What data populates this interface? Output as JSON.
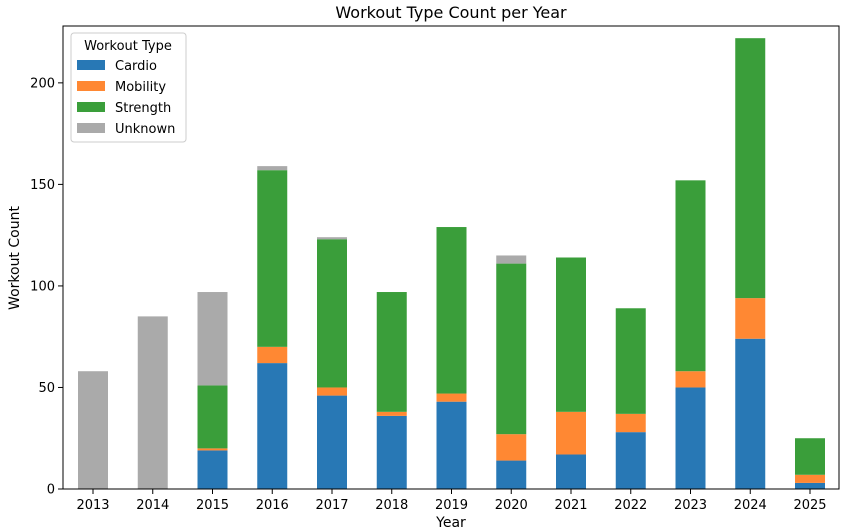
{
  "chart_data": {
    "type": "bar",
    "stacked": true,
    "title": "Workout Type Count per Year",
    "xlabel": "Year",
    "ylabel": "Workout Count",
    "ylim": [
      0,
      228
    ],
    "yticks": [
      0,
      50,
      100,
      150,
      200
    ],
    "categories": [
      "2013",
      "2014",
      "2015",
      "2016",
      "2017",
      "2018",
      "2019",
      "2020",
      "2021",
      "2022",
      "2023",
      "2024",
      "2025"
    ],
    "legend_title": "Workout Type",
    "legend_position": "top-left",
    "grid": false,
    "series": [
      {
        "name": "Cardio",
        "color": "#2878b5",
        "values": [
          0,
          0,
          19,
          62,
          46,
          36,
          43,
          14,
          17,
          28,
          50,
          74,
          3
        ]
      },
      {
        "name": "Mobility",
        "color": "#ff8833",
        "values": [
          0,
          0,
          1,
          8,
          4,
          2,
          4,
          13,
          21,
          9,
          8,
          20,
          4
        ]
      },
      {
        "name": "Strength",
        "color": "#3a9e3a",
        "values": [
          0,
          0,
          31,
          87,
          73,
          59,
          82,
          84,
          76,
          52,
          94,
          128,
          18
        ]
      },
      {
        "name": "Unknown",
        "color": "#aaaaaa",
        "values": [
          58,
          85,
          46,
          2,
          1,
          0,
          0,
          4,
          0,
          0,
          0,
          0,
          0
        ]
      }
    ]
  }
}
